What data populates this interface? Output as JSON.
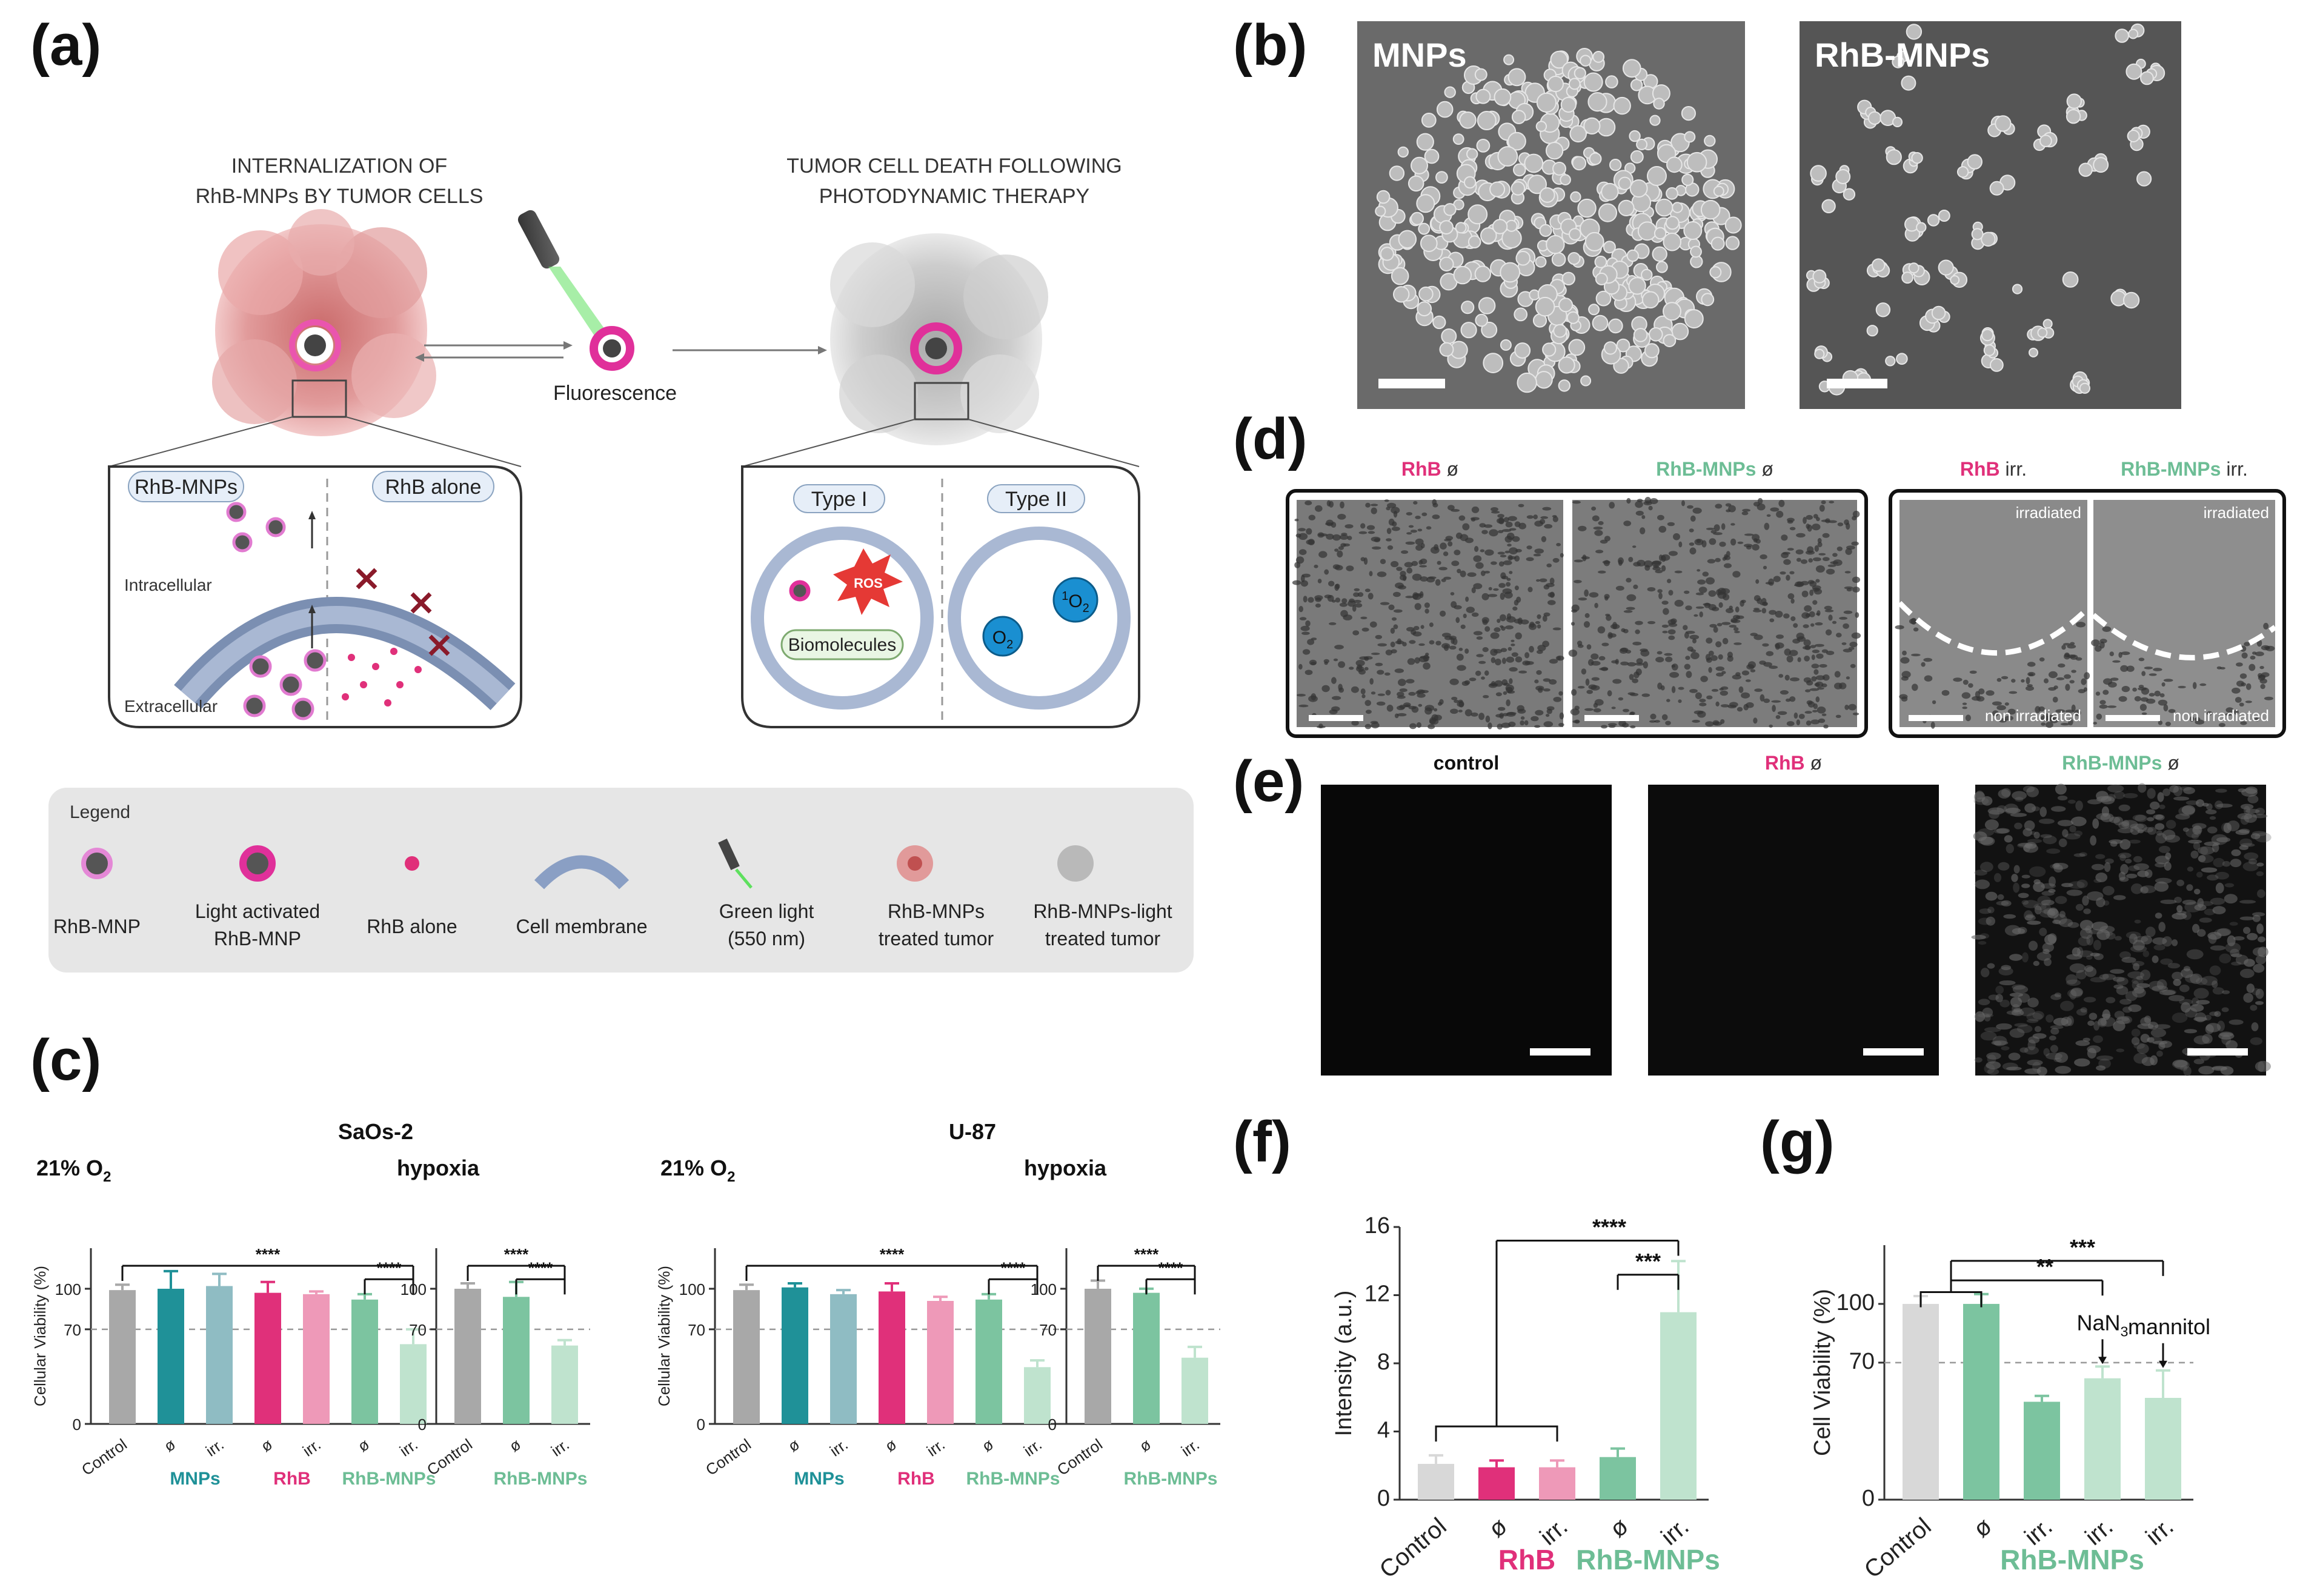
{
  "panel_labels": {
    "a": "(a)",
    "b": "(b)",
    "c": "(c)",
    "d": "(d)",
    "e": "(e)",
    "f": "(f)",
    "g": "(g)"
  },
  "scheme": {
    "left_title_1": "INTERNALIZATION OF",
    "left_title_2": "RhB-MNPs BY TUMOR CELLS",
    "right_title_1": "TUMOR CELL DEATH FOLLOWING",
    "right_title_2": "PHOTODYNAMIC THERAPY",
    "fluorescence": "Fluorescence",
    "rhb_mnps_tag": "RhB-MNPs",
    "rhb_alone_tag": "RhB alone",
    "intracellular": "Intracellular",
    "extracellular": "Extracellular",
    "type1": "Type I",
    "type2": "Type II",
    "ros": "ROS",
    "biomolecules": "Biomolecules",
    "o2": "O",
    "o2_sub": "2",
    "singlet_sup": "1",
    "legend_title": "Legend",
    "legend_items": [
      {
        "line1": "RhB-MNP",
        "line2": ""
      },
      {
        "line1": "Light activated",
        "line2": "RhB-MNP"
      },
      {
        "line1": "RhB alone",
        "line2": ""
      },
      {
        "line1": "Cell membrane",
        "line2": ""
      },
      {
        "line1": "Green light",
        "line2": "(550 nm)"
      },
      {
        "line1": "RhB-MNPs",
        "line2": "treated tumor"
      },
      {
        "line1": "RhB-MNPs-light",
        "line2": "treated tumor"
      }
    ]
  },
  "sem": {
    "left_label": "MNPs",
    "right_label": "RhB-MNPs"
  },
  "panel_d": {
    "titles": [
      {
        "name": "RhB",
        "suffix": " ø"
      },
      {
        "name": "RhB-MNPs",
        "suffix": " ø"
      },
      {
        "name": "RhB",
        "suffix": " irr."
      },
      {
        "name": "RhB-MNPs",
        "suffix": " irr."
      }
    ],
    "irradiated": "irradiated",
    "non_irradiated": "non irradiated"
  },
  "panel_e": {
    "titles": [
      {
        "name": "control",
        "suffix": ""
      },
      {
        "name": "RhB",
        "suffix": " ø"
      },
      {
        "name": "RhB-MNPs",
        "suffix": " ø"
      }
    ]
  },
  "colors": {
    "gray": "#a8a8a8",
    "teal": "#1f9198",
    "teal_light": "#8fbcc3",
    "magenta": "#e0307a",
    "pink": "#ee99b8",
    "green": "#7cc4a0",
    "green_light": "#bfe3ce",
    "light_gray": "#d8d8d8",
    "rhb_text": "#e0307a",
    "mnp_text": "#1f9198",
    "rhbmnp_text": "#6dbd95"
  },
  "chart_data": [
    {
      "id": "c-saos2-normoxia",
      "type": "bar",
      "group_title": "SaOs-2",
      "condition": "21% O",
      "condition_sub": "2",
      "ylabel": "Cellular Viability (%)",
      "ylim": [
        0,
        130
      ],
      "yticks": [
        0,
        70,
        100
      ],
      "reference_line": 70,
      "categories": [
        "Control",
        "ø",
        "irr.",
        "ø",
        "irr.",
        "ø",
        "irr."
      ],
      "values": [
        99,
        100,
        102,
        97,
        96,
        92,
        59
      ],
      "errors": [
        4,
        13,
        9,
        8,
        2,
        4,
        11
      ],
      "bar_colors": [
        "gray",
        "teal",
        "teal_light",
        "magenta",
        "pink",
        "green",
        "green_light"
      ],
      "groups": [
        {
          "label": "MNPs",
          "color": "mnp_text",
          "from": 1,
          "to": 2
        },
        {
          "label": "RhB",
          "color": "rhb_text",
          "from": 3,
          "to": 4
        },
        {
          "label": "RhB-MNPs",
          "color": "rhbmnp_text",
          "from": 5,
          "to": 6
        }
      ],
      "significance": [
        {
          "from": 0,
          "to": 6,
          "label": "****"
        },
        {
          "from": 5,
          "to": 6,
          "label": "****"
        }
      ]
    },
    {
      "id": "c-saos2-hypoxia",
      "type": "bar",
      "condition": "hypoxia",
      "ylabel": "",
      "ylim": [
        0,
        130
      ],
      "yticks": [
        0,
        70,
        100
      ],
      "reference_line": 70,
      "categories": [
        "Control",
        "ø",
        "irr."
      ],
      "values": [
        100,
        94,
        58
      ],
      "errors": [
        4,
        11,
        4
      ],
      "bar_colors": [
        "gray",
        "green",
        "green_light"
      ],
      "groups": [
        {
          "label": "RhB-MNPs",
          "color": "rhbmnp_text",
          "from": 1,
          "to": 2
        }
      ],
      "significance": [
        {
          "from": 0,
          "to": 2,
          "label": "****"
        },
        {
          "from": 1,
          "to": 2,
          "label": "****"
        }
      ]
    },
    {
      "id": "c-u87-normoxia",
      "type": "bar",
      "group_title": "U-87",
      "condition": "21% O",
      "condition_sub": "2",
      "ylabel": "Cellular Viability (%)",
      "ylim": [
        0,
        130
      ],
      "yticks": [
        0,
        70,
        100
      ],
      "reference_line": 70,
      "categories": [
        "Control",
        "ø",
        "irr.",
        "ø",
        "irr.",
        "ø",
        "irr."
      ],
      "values": [
        99,
        101,
        96,
        98,
        91,
        92,
        42
      ],
      "errors": [
        4,
        3,
        3,
        6,
        3,
        4,
        5
      ],
      "bar_colors": [
        "gray",
        "teal",
        "teal_light",
        "magenta",
        "pink",
        "green",
        "green_light"
      ],
      "groups": [
        {
          "label": "MNPs",
          "color": "mnp_text",
          "from": 1,
          "to": 2
        },
        {
          "label": "RhB",
          "color": "rhb_text",
          "from": 3,
          "to": 4
        },
        {
          "label": "RhB-MNPs",
          "color": "rhbmnp_text",
          "from": 5,
          "to": 6
        }
      ],
      "significance": [
        {
          "from": 0,
          "to": 6,
          "label": "****"
        },
        {
          "from": 5,
          "to": 6,
          "label": "****"
        }
      ]
    },
    {
      "id": "c-u87-hypoxia",
      "type": "bar",
      "condition": "hypoxia",
      "ylabel": "",
      "ylim": [
        0,
        130
      ],
      "yticks": [
        0,
        70,
        100
      ],
      "reference_line": 70,
      "categories": [
        "Control",
        "ø",
        "irr."
      ],
      "values": [
        100,
        97,
        49
      ],
      "errors": [
        6,
        3,
        8
      ],
      "bar_colors": [
        "gray",
        "green",
        "green_light"
      ],
      "groups": [
        {
          "label": "RhB-MNPs",
          "color": "rhbmnp_text",
          "from": 1,
          "to": 2
        }
      ],
      "significance": [
        {
          "from": 0,
          "to": 2,
          "label": "****"
        },
        {
          "from": 1,
          "to": 2,
          "label": "****"
        }
      ]
    },
    {
      "id": "f-intensity",
      "type": "bar",
      "ylabel": "Intensity (a.u.)",
      "ylim": [
        0,
        16
      ],
      "yticks": [
        0,
        4,
        8,
        12,
        16
      ],
      "categories": [
        "Control",
        "ø",
        "irr.",
        "ø",
        "irr."
      ],
      "values": [
        2.1,
        1.9,
        1.9,
        2.5,
        11.0
      ],
      "errors": [
        0.5,
        0.4,
        0.4,
        0.5,
        3.0
      ],
      "bar_colors": [
        "light_gray",
        "magenta",
        "pink",
        "green",
        "green_light"
      ],
      "groups": [
        {
          "label": "RhB",
          "color": "rhb_text",
          "from": 1,
          "to": 2
        },
        {
          "label": "RhB-MNPs",
          "color": "rhbmnp_text",
          "from": 3,
          "to": 4
        }
      ],
      "significance": [
        {
          "from": 0,
          "to": 4,
          "label": "****",
          "bracket_left": [
            0,
            2
          ]
        },
        {
          "from": 3,
          "to": 4,
          "label": "***"
        }
      ]
    },
    {
      "id": "g-cell-viability",
      "type": "bar",
      "ylabel": "Cell Viability (%)",
      "ylim": [
        0,
        130
      ],
      "yticks": [
        0,
        70,
        100
      ],
      "reference_line": 70,
      "categories": [
        "Control",
        "ø",
        "irr.",
        "irr.",
        "irr."
      ],
      "values": [
        100,
        100,
        50,
        62,
        52
      ],
      "errors": [
        4,
        5,
        3,
        6,
        14
      ],
      "bar_colors": [
        "light_gray",
        "green",
        "green",
        "green_light",
        "green_light"
      ],
      "groups": [
        {
          "label": "RhB-MNPs",
          "color": "rhbmnp_text",
          "from": 1,
          "to": 4
        }
      ],
      "annotations": [
        {
          "index": 3,
          "text": "NaN",
          "sub": "3"
        },
        {
          "index": 4,
          "text": "mannitol",
          "sub": ""
        }
      ],
      "significance": [
        {
          "from": 0,
          "to": 3,
          "label": "**",
          "bracket_left": [
            0,
            1
          ]
        },
        {
          "from": 0,
          "to": 4,
          "label": "***",
          "bracket_left": [
            0,
            1
          ]
        }
      ]
    }
  ]
}
